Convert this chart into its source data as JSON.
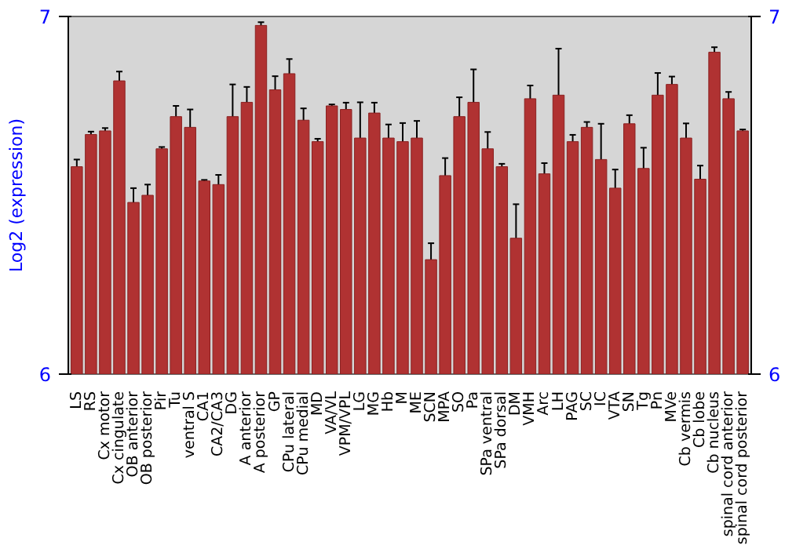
{
  "chart_data": {
    "type": "bar",
    "ylabel": "Log2 (expression)",
    "categories": [
      "LS",
      "RS",
      "Cx motor",
      "Cx cingulate",
      "OB anterior",
      "OB posterior",
      "Pir",
      "Tu",
      "ventral S",
      "CA1",
      "CA2/CA3",
      "DG",
      "A anterior",
      "A posterior",
      "GP",
      "CPu lateral",
      "CPu medial",
      "MD",
      "VA/VL",
      "VPM/VPL",
      "LG",
      "MG",
      "Hb",
      "M",
      "ME",
      "SCN",
      "MPA",
      "SO",
      "Pa",
      "SPa ventral",
      "SPa dorsal",
      "DM",
      "VMH",
      "Arc",
      "LH",
      "PAG",
      "SC",
      "IC",
      "VTA",
      "SN",
      "Tg",
      "Pn",
      "MVe",
      "Cb vermis",
      "Cb lobe",
      "Cb nucleus",
      "spinal cord anterior",
      "spinal cord posterior"
    ],
    "values": [
      6.58,
      6.67,
      6.68,
      6.82,
      6.48,
      6.5,
      6.63,
      6.72,
      6.69,
      6.54,
      6.53,
      6.72,
      6.76,
      6.975,
      6.795,
      6.84,
      6.71,
      6.65,
      6.75,
      6.74,
      6.66,
      6.73,
      6.66,
      6.65,
      6.66,
      6.32,
      6.555,
      6.72,
      6.76,
      6.63,
      6.58,
      6.38,
      6.77,
      6.56,
      6.78,
      6.65,
      6.69,
      6.6,
      6.52,
      6.7,
      6.575,
      6.78,
      6.81,
      6.66,
      6.545,
      6.9,
      6.77,
      6.68
    ],
    "errors": [
      0.02,
      0.008,
      0.008,
      0.026,
      0.04,
      0.03,
      0.005,
      0.03,
      0.05,
      0.003,
      0.027,
      0.09,
      0.043,
      0.009,
      0.038,
      0.041,
      0.033,
      0.008,
      0.004,
      0.019,
      0.1,
      0.029,
      0.038,
      0.052,
      0.048,
      0.046,
      0.049,
      0.054,
      0.092,
      0.047,
      0.008,
      0.095,
      0.037,
      0.03,
      0.13,
      0.019,
      0.015,
      0.1,
      0.052,
      0.024,
      0.058,
      0.062,
      0.022,
      0.041,
      0.038,
      0.014,
      0.019,
      0.004
    ],
    "color": "#b03232",
    "ylim": [
      6,
      7
    ],
    "yticks": [
      6,
      7
    ],
    "y2lim": [
      6,
      7
    ],
    "y2ticks": [
      6,
      7
    ],
    "grid": false
  }
}
